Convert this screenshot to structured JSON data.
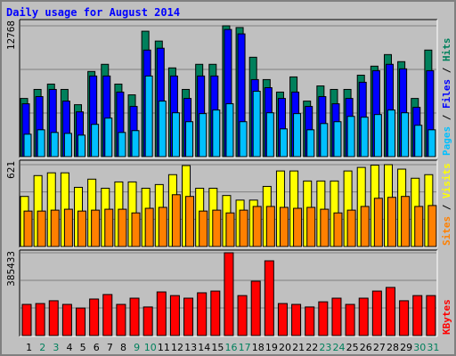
{
  "title": "Daily usage for August 2014",
  "legend_separator": " / ",
  "weekend_color": "#00805c",
  "weekend_categories": [
    "2",
    "3",
    "9",
    "10",
    "16",
    "17",
    "23",
    "24",
    "30",
    "31"
  ],
  "chart_data": [
    {
      "type": "bar",
      "ylim": [
        0,
        12768
      ],
      "yticks": [
        {
          "value": 4256,
          "label": null
        },
        {
          "value": 8512,
          "label": null
        },
        12768
      ],
      "series": [
        {
          "name": "Pages",
          "color": "#00c0ff",
          "values": [
            2190,
            2620,
            2360,
            2270,
            2100,
            3150,
            3760,
            2360,
            2540,
            7870,
            5420,
            4280,
            3410,
            4200,
            4550,
            5160,
            3410,
            6380,
            4280,
            2710,
            4200,
            2620,
            3230,
            3410,
            3930,
            3850,
            4110,
            4550,
            4280,
            3060,
            2620
          ]
        },
        {
          "name": "Files",
          "color": "#0000ff",
          "values": [
            5160,
            5860,
            6560,
            5420,
            4370,
            7870,
            7870,
            6300,
            4900,
            10400,
            10580,
            7870,
            5680,
            7870,
            7870,
            12410,
            11980,
            7520,
            6730,
            5680,
            6300,
            4900,
            5860,
            5160,
            5680,
            7260,
            8390,
            9010,
            8570,
            4810,
            8390
          ]
        },
        {
          "name": "Hits",
          "color": "#00805c",
          "values": [
            5680,
            6560,
            7080,
            6560,
            5070,
            8310,
            9010,
            7080,
            6030,
            12240,
            11280,
            8660,
            6560,
            9010,
            9010,
            12768,
            12600,
            9700,
            7520,
            6300,
            7780,
            5420,
            6900,
            6560,
            6560,
            7950,
            8830,
            9960,
            9270,
            5680,
            10400
          ]
        }
      ]
    },
    {
      "type": "bar",
      "ylim": [
        0,
        621
      ],
      "yticks": [
        {
          "value": 207,
          "label": null
        },
        {
          "value": 414,
          "label": null
        },
        621
      ],
      "series": [
        {
          "name": "Sites",
          "color": "#ff8000",
          "values": [
            269,
            269,
            276,
            283,
            269,
            276,
            283,
            283,
            255,
            290,
            297,
            393,
            380,
            269,
            276,
            255,
            276,
            304,
            304,
            297,
            290,
            297,
            283,
            255,
            276,
            304,
            366,
            373,
            380,
            304,
            311
          ]
        },
        {
          "name": "Visits",
          "color": "#ffff00",
          "values": [
            380,
            538,
            559,
            559,
            449,
            511,
            442,
            490,
            490,
            442,
            470,
            545,
            614,
            442,
            442,
            387,
            352,
            352,
            456,
            573,
            573,
            497,
            497,
            497,
            573,
            600,
            617,
            621,
            587,
            518,
            545
          ]
        }
      ]
    },
    {
      "type": "bar",
      "categories": [
        "1",
        "2",
        "3",
        "4",
        "5",
        "6",
        "7",
        "8",
        "9",
        "10",
        "11",
        "12",
        "13",
        "14",
        "15",
        "16",
        "17",
        "18",
        "19",
        "20",
        "21",
        "22",
        "23",
        "24",
        "25",
        "26",
        "27",
        "28",
        "29",
        "30",
        "31"
      ],
      "ylim": [
        0,
        385433
      ],
      "yticks": [
        {
          "value": 128478,
          "label": null
        },
        {
          "value": 256955,
          "label": null
        },
        385433
      ],
      "series": [
        {
          "name": "KBytes",
          "color": "#ff0000",
          "values": [
            145000,
            149000,
            162000,
            145000,
            128000,
            170000,
            191000,
            145000,
            174000,
            133000,
            203000,
            186000,
            174000,
            199000,
            207000,
            385433,
            186000,
            253000,
            348000,
            149000,
            145000,
            133000,
            157000,
            174000,
            145000,
            174000,
            207000,
            224000,
            162000,
            186000,
            186000
          ]
        }
      ]
    }
  ]
}
